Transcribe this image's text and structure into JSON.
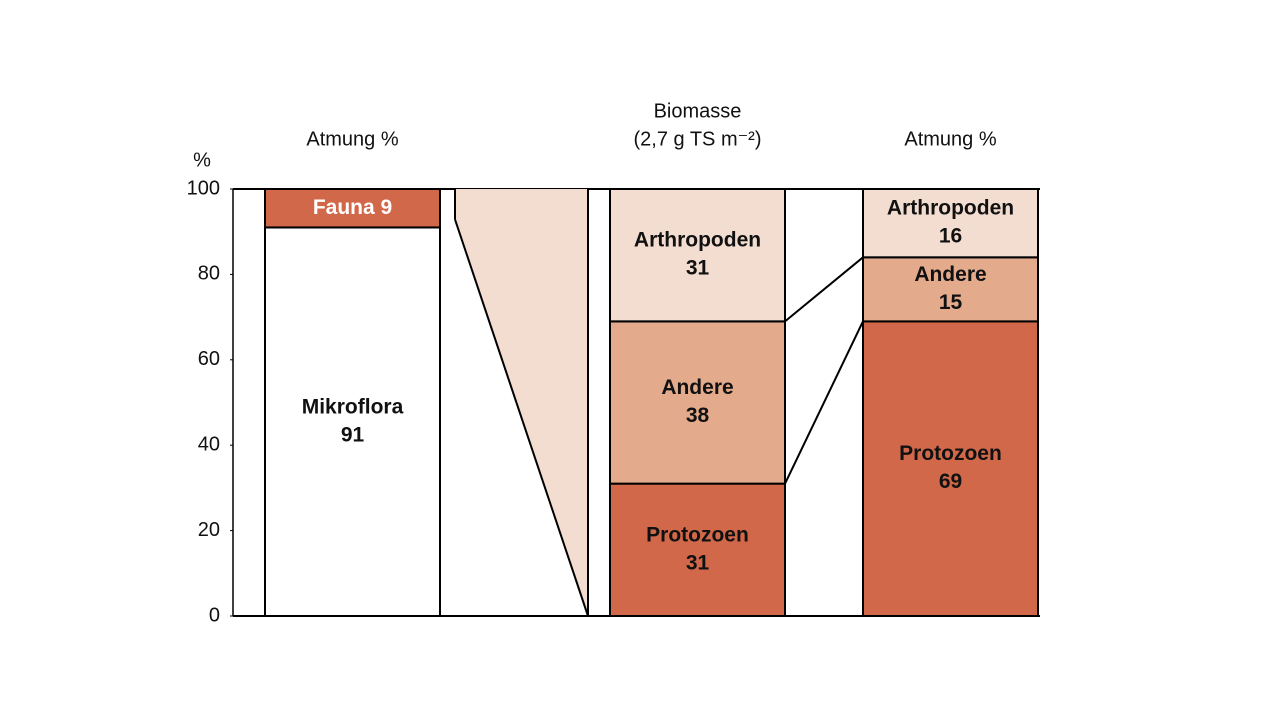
{
  "chart_data": {
    "type": "bar",
    "stacked": true,
    "ylabel": "%",
    "ylim": [
      0,
      100
    ],
    "yticks": [
      0,
      20,
      40,
      60,
      80,
      100
    ],
    "categories": [
      [
        "Atmung %"
      ],
      [
        "Biomasse",
        "(2,7 g TS m⁻²)"
      ],
      [
        "Atmung %"
      ]
    ],
    "series": [
      {
        "name": "Mikroflora",
        "color": "#ffffff",
        "label_color": "#000000",
        "values": [
          91,
          null,
          null
        ]
      },
      {
        "name": "Fauna",
        "color": "#d2684a",
        "label_color": "#ffffff",
        "values": [
          9,
          null,
          null
        ]
      },
      {
        "name": "Protozoen",
        "color": "#d2684a",
        "label_color": "#ffffff",
        "values": [
          null,
          31,
          69
        ]
      },
      {
        "name": "Andere",
        "color": "#e3aa8c",
        "label_color": "#ffffff",
        "values": [
          null,
          38,
          15
        ]
      },
      {
        "name": "Arthropoden",
        "color": "#f3ddd0",
        "label_color": "#000000",
        "values": [
          null,
          31,
          16
        ]
      }
    ]
  }
}
